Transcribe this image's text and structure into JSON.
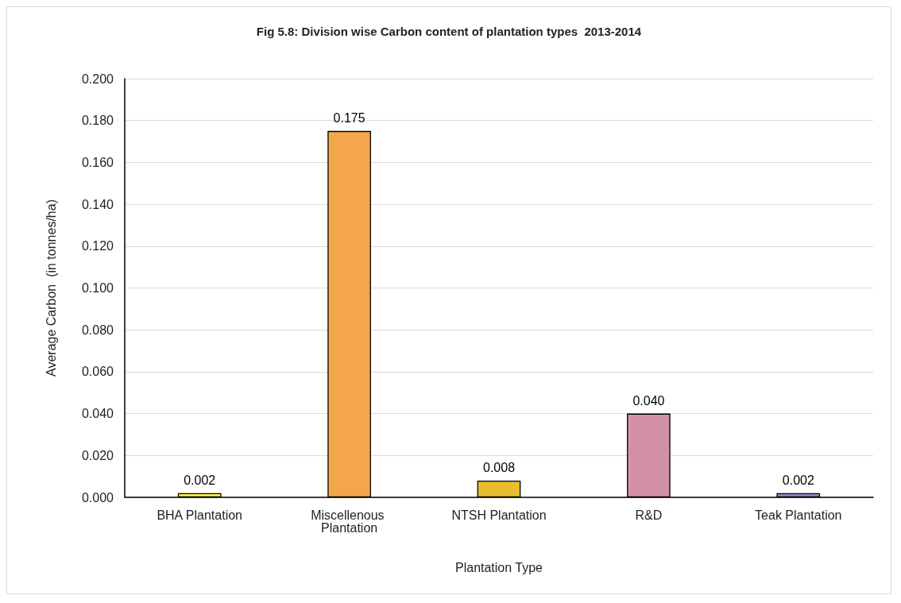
{
  "chart_data": {
    "type": "bar",
    "title": "Fig 5.8: Division wise Carbon content of plantation types  2013-2014",
    "xlabel": "Plantation Type",
    "ylabel": "Average Carbon  (in tonnes/ha)",
    "categories": [
      "BHA Plantation",
      "Miscellenous Plantation",
      "NTSH Plantation",
      "R&D",
      "Teak Plantation"
    ],
    "values": [
      0.002,
      0.175,
      0.008,
      0.04,
      0.002
    ],
    "value_labels": [
      "0.002",
      "0.175",
      "0.008",
      "0.040",
      "0.002"
    ],
    "colors": [
      "#fff34f",
      "#f4a64a",
      "#e6be2e",
      "#d291a6",
      "#9b85c6"
    ],
    "ylim": [
      0,
      0.2
    ],
    "yticks": [
      {
        "value": 0,
        "label": "0.000"
      },
      {
        "value": 0.02,
        "label": "0.020"
      },
      {
        "value": 0.04,
        "label": "0.040"
      },
      {
        "value": 0.06,
        "label": "0.060"
      },
      {
        "value": 0.08,
        "label": "0.080"
      },
      {
        "value": 0.1,
        "label": "0.100"
      },
      {
        "value": 0.12,
        "label": "0.120"
      },
      {
        "value": 0.14,
        "label": "0.140"
      },
      {
        "value": 0.16,
        "label": "0.160"
      },
      {
        "value": 0.18,
        "label": "0.180"
      },
      {
        "value": 0.2,
        "label": "0.200"
      }
    ],
    "grid": "y"
  }
}
